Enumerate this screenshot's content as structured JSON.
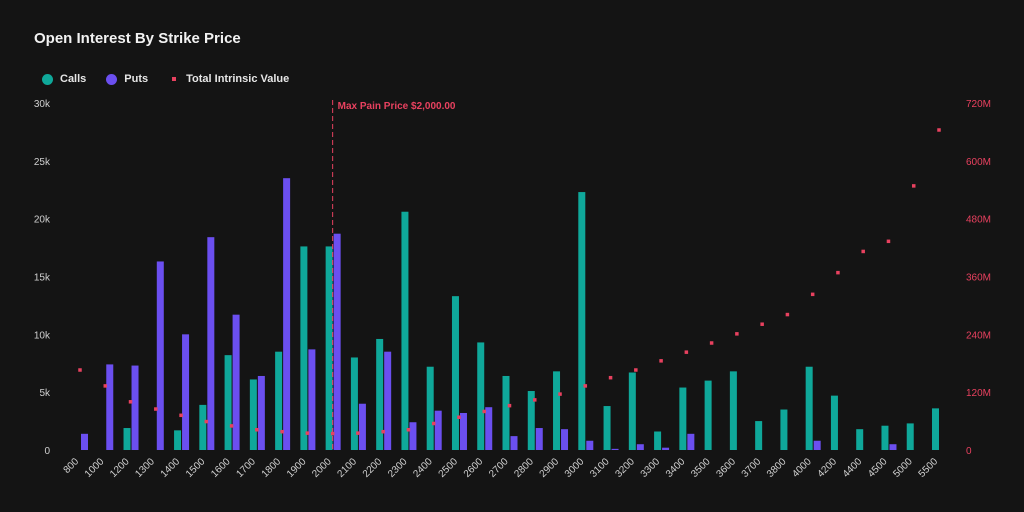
{
  "chart_data": {
    "type": "bar",
    "title": "Open Interest By Strike Price",
    "categories": [
      "800",
      "1000",
      "1200",
      "1300",
      "1400",
      "1500",
      "1600",
      "1700",
      "1800",
      "1900",
      "2000",
      "2100",
      "2200",
      "2300",
      "2400",
      "2500",
      "2600",
      "2700",
      "2800",
      "2900",
      "3000",
      "3100",
      "3200",
      "3300",
      "3400",
      "3500",
      "3600",
      "3700",
      "3800",
      "4000",
      "4200",
      "4400",
      "4500",
      "5000",
      "5500"
    ],
    "series": [
      {
        "name": "Calls",
        "type": "bar",
        "axis": "left",
        "color": "#0fa89a",
        "values": [
          0,
          0,
          1900,
          0,
          1700,
          3900,
          8200,
          6100,
          8500,
          17600,
          17600,
          8000,
          9600,
          20600,
          7200,
          13300,
          9300,
          6400,
          5100,
          6800,
          22300,
          3800,
          6700,
          1600,
          5400,
          6000,
          6800,
          2500,
          3500,
          7200,
          4700,
          1800,
          2100,
          2300,
          3600
        ]
      },
      {
        "name": "Puts",
        "type": "bar",
        "axis": "left",
        "color": "#6b4ff0",
        "values": [
          1400,
          7400,
          7300,
          16300,
          10000,
          18400,
          11700,
          6400,
          23500,
          8700,
          18700,
          4000,
          8500,
          2400,
          3400,
          3200,
          3700,
          1200,
          1900,
          1800,
          800,
          100,
          500,
          200,
          1400,
          0,
          0,
          0,
          0,
          800,
          0,
          0,
          500,
          0,
          0
        ]
      },
      {
        "name": "Total Intrinsic Value",
        "type": "scatter",
        "axis": "right",
        "color": "#e8415f",
        "values": [
          166,
          133,
          100,
          85,
          72,
          59,
          50,
          42,
          38,
          35,
          34,
          35,
          38,
          42,
          55,
          68,
          80,
          92,
          104,
          116,
          133,
          150,
          166,
          185,
          203,
          222,
          241,
          261,
          281,
          323,
          368,
          412,
          433,
          548,
          664
        ]
      }
    ],
    "y_left": {
      "ylim": [
        0,
        30000
      ],
      "ticks": [
        "0",
        "5k",
        "10k",
        "15k",
        "20k",
        "25k",
        "30k"
      ]
    },
    "y_right": {
      "ylim": [
        0,
        720
      ],
      "ticks": [
        "0",
        "120M",
        "240M",
        "360M",
        "480M",
        "600M",
        "720M"
      ],
      "color": "#e8415f"
    },
    "annotation": {
      "label": "Max Pain Price $2,000.00",
      "category": "2000",
      "color": "#e8415f"
    },
    "legend_placement": "top-left",
    "grid": false
  }
}
